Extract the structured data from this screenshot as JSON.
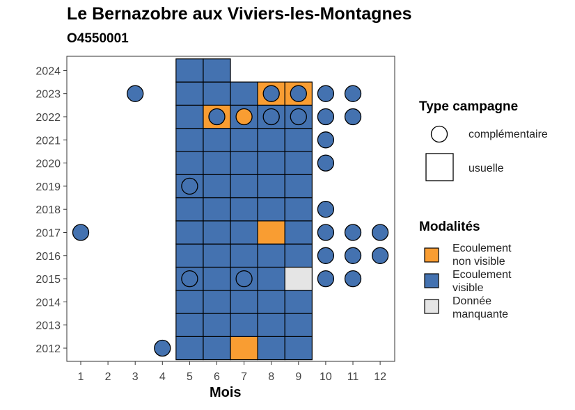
{
  "chart_data": {
    "type": "heatmap",
    "title": "Le Bernazobre aux Viviers-les-Montagnes",
    "subtitle": "O4550001",
    "xlabel": "Mois",
    "ylabel": "",
    "x_ticks": [
      "1",
      "2",
      "3",
      "4",
      "5",
      "6",
      "7",
      "8",
      "9",
      "10",
      "11",
      "12"
    ],
    "y_ticks": [
      "2012",
      "2013",
      "2014",
      "2015",
      "2016",
      "2017",
      "2018",
      "2019",
      "2020",
      "2021",
      "2022",
      "2023",
      "2024"
    ],
    "xlim": [
      0.5,
      12.5
    ],
    "ylim": [
      2011.5,
      2024.5
    ],
    "colors": {
      "Ecoulement non visible": "#F99D32",
      "Ecoulement visible": "#4472B0",
      "Donnée manquante": "#E5E5E5"
    },
    "legend_shape": {
      "title": "Type campagne",
      "entries": [
        {
          "label": "complémentaire",
          "shape": "circle"
        },
        {
          "label": "usuelle",
          "shape": "square"
        }
      ]
    },
    "legend_fill": {
      "title": "Modalités",
      "entries": [
        {
          "label": "Ecoulement non visible",
          "lines": [
            "Ecoulement",
            "non visible"
          ],
          "color": "#F99D32"
        },
        {
          "label": "Ecoulement visible",
          "lines": [
            "Ecoulement",
            "visible"
          ],
          "color": "#4472B0"
        },
        {
          "label": "Donnée manquante",
          "lines": [
            "Donnée",
            "manquante"
          ],
          "color": "#E5E5E5"
        }
      ]
    },
    "usuelle": [
      {
        "year": 2012,
        "months": {
          "5": "v",
          "6": "v",
          "7": "n",
          "8": "v",
          "9": "v"
        }
      },
      {
        "year": 2013,
        "months": {
          "5": "v",
          "6": "v",
          "7": "v",
          "8": "v",
          "9": "v"
        }
      },
      {
        "year": 2014,
        "months": {
          "5": "v",
          "6": "v",
          "7": "v",
          "8": "v",
          "9": "v"
        }
      },
      {
        "year": 2015,
        "months": {
          "5": "v",
          "6": "v",
          "7": "v",
          "8": "v",
          "9": "m"
        }
      },
      {
        "year": 2016,
        "months": {
          "5": "v",
          "6": "v",
          "7": "v",
          "8": "v",
          "9": "v"
        }
      },
      {
        "year": 2017,
        "months": {
          "5": "v",
          "6": "v",
          "7": "v",
          "8": "n",
          "9": "v"
        }
      },
      {
        "year": 2018,
        "months": {
          "5": "v",
          "6": "v",
          "7": "v",
          "8": "v",
          "9": "v"
        }
      },
      {
        "year": 2019,
        "months": {
          "5": "v",
          "6": "v",
          "7": "v",
          "8": "v",
          "9": "v"
        }
      },
      {
        "year": 2020,
        "months": {
          "5": "v",
          "6": "v",
          "7": "v",
          "8": "v",
          "9": "v"
        }
      },
      {
        "year": 2021,
        "months": {
          "5": "v",
          "6": "v",
          "7": "v",
          "8": "v",
          "9": "v"
        }
      },
      {
        "year": 2022,
        "months": {
          "5": "v",
          "6": "n",
          "7": "v",
          "8": "v",
          "9": "v"
        }
      },
      {
        "year": 2023,
        "months": {
          "5": "v",
          "6": "v",
          "7": "v",
          "8": "n",
          "9": "n"
        }
      },
      {
        "year": 2024,
        "months": {
          "5": "v",
          "6": "v"
        }
      }
    ],
    "complementaire": [
      {
        "year": 2012,
        "month": 4,
        "value": "v"
      },
      {
        "year": 2015,
        "month": 5,
        "value": "v"
      },
      {
        "year": 2015,
        "month": 7,
        "value": "v"
      },
      {
        "year": 2015,
        "month": 10,
        "value": "v"
      },
      {
        "year": 2015,
        "month": 11,
        "value": "v"
      },
      {
        "year": 2016,
        "month": 10,
        "value": "v"
      },
      {
        "year": 2016,
        "month": 11,
        "value": "v"
      },
      {
        "year": 2016,
        "month": 12,
        "value": "v"
      },
      {
        "year": 2017,
        "month": 1,
        "value": "v"
      },
      {
        "year": 2017,
        "month": 10,
        "value": "v"
      },
      {
        "year": 2017,
        "month": 11,
        "value": "v"
      },
      {
        "year": 2017,
        "month": 12,
        "value": "v"
      },
      {
        "year": 2018,
        "month": 10,
        "value": "v"
      },
      {
        "year": 2019,
        "month": 5,
        "value": "v"
      },
      {
        "year": 2020,
        "month": 10,
        "value": "v"
      },
      {
        "year": 2021,
        "month": 10,
        "value": "v"
      },
      {
        "year": 2022,
        "month": 6,
        "value": "v"
      },
      {
        "year": 2022,
        "month": 7,
        "value": "n"
      },
      {
        "year": 2022,
        "month": 8,
        "value": "v"
      },
      {
        "year": 2022,
        "month": 9,
        "value": "v"
      },
      {
        "year": 2022,
        "month": 10,
        "value": "v"
      },
      {
        "year": 2022,
        "month": 11,
        "value": "v"
      },
      {
        "year": 2023,
        "month": 3,
        "value": "v"
      },
      {
        "year": 2023,
        "month": 8,
        "value": "v"
      },
      {
        "year": 2023,
        "month": 9,
        "value": "v"
      },
      {
        "year": 2023,
        "month": 10,
        "value": "v"
      },
      {
        "year": 2023,
        "month": 11,
        "value": "v"
      }
    ]
  }
}
